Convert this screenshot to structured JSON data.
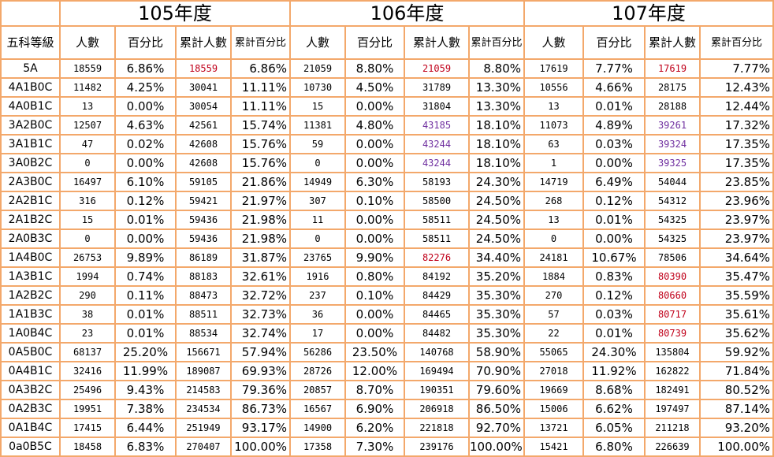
{
  "years": [
    "105年度",
    "106年度",
    "107年度"
  ],
  "sub_headers": {
    "label": "五科等級",
    "count": "人數",
    "pct": "百分比",
    "cum_count": "累計人數",
    "cum_pct": "累計百分比"
  },
  "rows": [
    {
      "label": "5A",
      "y105": [
        "18559",
        "6.86%",
        "18559",
        "6.86%"
      ],
      "y106": [
        "21059",
        "8.80%",
        "21059",
        "8.80%"
      ],
      "y107": [
        "17619",
        "7.77%",
        "17619",
        "7.77%"
      ]
    },
    {
      "label": "4A1B0C",
      "y105": [
        "11482",
        "4.25%",
        "30041",
        "11.11%"
      ],
      "y106": [
        "10730",
        "4.50%",
        "31789",
        "13.30%"
      ],
      "y107": [
        "10556",
        "4.66%",
        "28175",
        "12.43%"
      ]
    },
    {
      "label": "4A0B1C",
      "y105": [
        "13",
        "0.00%",
        "30054",
        "11.11%"
      ],
      "y106": [
        "15",
        "0.00%",
        "31804",
        "13.30%"
      ],
      "y107": [
        "13",
        "0.01%",
        "28188",
        "12.44%"
      ]
    },
    {
      "label": "3A2B0C",
      "y105": [
        "12507",
        "4.63%",
        "42561",
        "15.74%"
      ],
      "y106": [
        "11381",
        "4.80%",
        "43185",
        "18.10%"
      ],
      "y107": [
        "11073",
        "4.89%",
        "39261",
        "17.32%"
      ]
    },
    {
      "label": "3A1B1C",
      "y105": [
        "47",
        "0.02%",
        "42608",
        "15.76%"
      ],
      "y106": [
        "59",
        "0.00%",
        "43244",
        "18.10%"
      ],
      "y107": [
        "63",
        "0.03%",
        "39324",
        "17.35%"
      ]
    },
    {
      "label": "3A0B2C",
      "y105": [
        "0",
        "0.00%",
        "42608",
        "15.76%"
      ],
      "y106": [
        "0",
        "0.00%",
        "43244",
        "18.10%"
      ],
      "y107": [
        "1",
        "0.00%",
        "39325",
        "17.35%"
      ]
    },
    {
      "label": "2A3B0C",
      "y105": [
        "16497",
        "6.10%",
        "59105",
        "21.86%"
      ],
      "y106": [
        "14949",
        "6.30%",
        "58193",
        "24.30%"
      ],
      "y107": [
        "14719",
        "6.49%",
        "54044",
        "23.85%"
      ]
    },
    {
      "label": "2A2B1C",
      "y105": [
        "316",
        "0.12%",
        "59421",
        "21.97%"
      ],
      "y106": [
        "307",
        "0.10%",
        "58500",
        "24.50%"
      ],
      "y107": [
        "268",
        "0.12%",
        "54312",
        "23.96%"
      ]
    },
    {
      "label": "2A1B2C",
      "y105": [
        "15",
        "0.01%",
        "59436",
        "21.98%"
      ],
      "y106": [
        "11",
        "0.00%",
        "58511",
        "24.50%"
      ],
      "y107": [
        "13",
        "0.01%",
        "54325",
        "23.97%"
      ]
    },
    {
      "label": "2A0B3C",
      "y105": [
        "0",
        "0.00%",
        "59436",
        "21.98%"
      ],
      "y106": [
        "0",
        "0.00%",
        "58511",
        "24.50%"
      ],
      "y107": [
        "0",
        "0.00%",
        "54325",
        "23.97%"
      ]
    },
    {
      "label": "1A4B0C",
      "y105": [
        "26753",
        "9.89%",
        "86189",
        "31.87%"
      ],
      "y106": [
        "23765",
        "9.90%",
        "82276",
        "34.40%"
      ],
      "y107": [
        "24181",
        "10.67%",
        "78506",
        "34.64%"
      ]
    },
    {
      "label": "1A3B1C",
      "y105": [
        "1994",
        "0.74%",
        "88183",
        "32.61%"
      ],
      "y106": [
        "1916",
        "0.80%",
        "84192",
        "35.20%"
      ],
      "y107": [
        "1884",
        "0.83%",
        "80390",
        "35.47%"
      ]
    },
    {
      "label": "1A2B2C",
      "y105": [
        "290",
        "0.11%",
        "88473",
        "32.72%"
      ],
      "y106": [
        "237",
        "0.10%",
        "84429",
        "35.30%"
      ],
      "y107": [
        "270",
        "0.12%",
        "80660",
        "35.59%"
      ]
    },
    {
      "label": "1A1B3C",
      "y105": [
        "38",
        "0.01%",
        "88511",
        "32.73%"
      ],
      "y106": [
        "36",
        "0.00%",
        "84465",
        "35.30%"
      ],
      "y107": [
        "57",
        "0.03%",
        "80717",
        "35.61%"
      ]
    },
    {
      "label": "1A0B4C",
      "y105": [
        "23",
        "0.01%",
        "88534",
        "32.74%"
      ],
      "y106": [
        "17",
        "0.00%",
        "84482",
        "35.30%"
      ],
      "y107": [
        "22",
        "0.01%",
        "80739",
        "35.62%"
      ]
    },
    {
      "label": "0A5B0C",
      "y105": [
        "68137",
        "25.20%",
        "156671",
        "57.94%"
      ],
      "y106": [
        "56286",
        "23.50%",
        "140768",
        "58.90%"
      ],
      "y107": [
        "55065",
        "24.30%",
        "135804",
        "59.92%"
      ]
    },
    {
      "label": "0A4B1C",
      "y105": [
        "32416",
        "11.99%",
        "189087",
        "69.93%"
      ],
      "y106": [
        "28726",
        "12.00%",
        "169494",
        "70.90%"
      ],
      "y107": [
        "27018",
        "11.92%",
        "162822",
        "71.84%"
      ]
    },
    {
      "label": "0A3B2C",
      "y105": [
        "25496",
        "9.43%",
        "214583",
        "79.36%"
      ],
      "y106": [
        "20857",
        "8.70%",
        "190351",
        "79.60%"
      ],
      "y107": [
        "19669",
        "8.68%",
        "182491",
        "80.52%"
      ]
    },
    {
      "label": "0A2B3C",
      "y105": [
        "19951",
        "7.38%",
        "234534",
        "86.73%"
      ],
      "y106": [
        "16567",
        "6.90%",
        "206918",
        "86.50%"
      ],
      "y107": [
        "15006",
        "6.62%",
        "197497",
        "87.14%"
      ]
    },
    {
      "label": "0A1B4C",
      "y105": [
        "17415",
        "6.44%",
        "251949",
        "93.17%"
      ],
      "y106": [
        "14900",
        "6.20%",
        "221818",
        "92.70%"
      ],
      "y107": [
        "13721",
        "6.05%",
        "211218",
        "93.20%"
      ]
    },
    {
      "label": "0a0B5C",
      "y105": [
        "18458",
        "6.83%",
        "270407",
        "100.00%"
      ],
      "y106": [
        "17358",
        "7.30%",
        "239176",
        "100.00%"
      ],
      "y107": [
        "15421",
        "6.80%",
        "226639",
        "100.00%"
      ]
    }
  ],
  "highlights": {
    "red": "#c0001a",
    "purple": "#7030a0",
    "y105_red_rows": [
      0
    ],
    "y106_red_rows": [
      0,
      10
    ],
    "y106_purple_rows": [
      3,
      4,
      5
    ],
    "y107_red_rows": [
      0,
      11,
      12,
      13,
      14
    ],
    "y107_purple_rows": [
      3,
      4,
      5
    ]
  }
}
